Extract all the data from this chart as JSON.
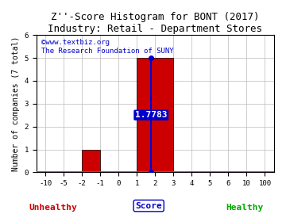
{
  "title": "Z''-Score Histogram for BONT (2017)",
  "subtitle": "Industry: Retail - Department Stores",
  "watermark_line1": "©www.textbiz.org",
  "watermark_line2": "The Research Foundation of SUNY",
  "xtick_labels": [
    "-10",
    "-5",
    "-2",
    "-1",
    "0",
    "1",
    "2",
    "3",
    "4",
    "5",
    "6",
    "10",
    "100"
  ],
  "xtick_values": [
    -10,
    -5,
    -2,
    -1,
    0,
    1,
    2,
    3,
    4,
    5,
    6,
    10,
    100
  ],
  "bar1_left_label": "-2",
  "bar1_right_label": "-1",
  "bar1_height": 1,
  "bar2_left_label": "1",
  "bar2_right_label": "3",
  "bar2_height": 5,
  "bar_color": "#cc0000",
  "bar_edgecolor": "#000000",
  "zscore_value": 1.7783,
  "zscore_label": "1.7783",
  "zscore_line_color": "#0000cc",
  "annotation_facecolor": "#0000cc",
  "annotation_textcolor": "#ffffff",
  "ylim": [
    0,
    6
  ],
  "yticks": [
    0,
    1,
    2,
    3,
    4,
    5,
    6
  ],
  "xlabel": "Score",
  "ylabel": "Number of companies (7 total)",
  "unhealthy_label": "Unhealthy",
  "unhealthy_color": "#cc0000",
  "healthy_label": "Healthy",
  "healthy_color": "#00aa00",
  "grid_color": "#bbbbbb",
  "background_color": "#ffffff",
  "title_fontsize": 9,
  "axis_label_fontsize": 7,
  "tick_fontsize": 6.5,
  "watermark_fontsize": 6.5,
  "annotation_fontsize": 8
}
